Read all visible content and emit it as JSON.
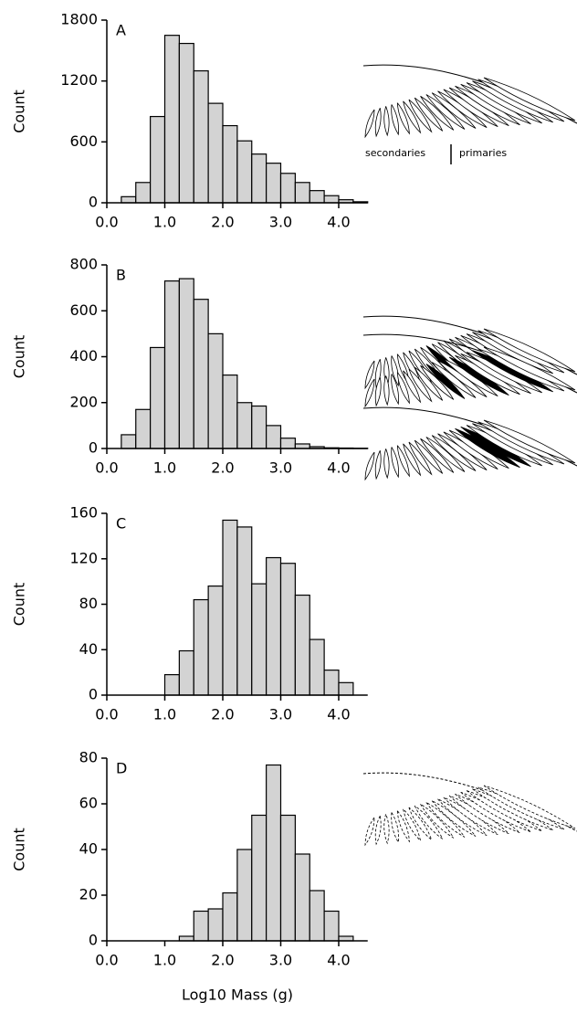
{
  "chart_data": [
    {
      "type": "histogram",
      "label": "A",
      "ylabel": "Count",
      "color": "#d3d3d3",
      "bins": [
        0,
        0.25,
        0.5,
        0.75,
        1.0,
        1.25,
        1.5,
        1.75,
        2.0,
        2.25,
        2.5,
        2.75,
        3.0,
        3.25,
        3.5,
        3.75,
        4.0,
        4.25,
        4.5
      ],
      "values": [
        0,
        60,
        200,
        850,
        1650,
        1570,
        1300,
        980,
        760,
        610,
        480,
        390,
        290,
        200,
        120,
        70,
        30,
        10
      ],
      "xlim": [
        0,
        4.5
      ],
      "ylim": [
        0,
        1800
      ],
      "yticks": [
        0,
        600,
        1200,
        1800
      ],
      "xticks": [
        {
          "value": 0,
          "label": "0.0"
        },
        {
          "value": 1,
          "label": "1.0"
        },
        {
          "value": 2,
          "label": "2.0"
        },
        {
          "value": 3,
          "label": "3.0"
        },
        {
          "value": 4,
          "label": "4.0"
        }
      ],
      "annotations": [
        "secondaries",
        "primaries"
      ]
    },
    {
      "type": "histogram",
      "label": "B",
      "ylabel": "Count",
      "color": "#d3d3d3",
      "bins": [
        0,
        0.25,
        0.5,
        0.75,
        1.0,
        1.25,
        1.5,
        1.75,
        2.0,
        2.25,
        2.5,
        2.75,
        3.0,
        3.25,
        3.5,
        3.75,
        4.0,
        4.25,
        4.5
      ],
      "values": [
        0,
        60,
        170,
        440,
        730,
        740,
        650,
        500,
        320,
        200,
        185,
        100,
        45,
        20,
        8,
        3,
        2,
        1
      ],
      "xlim": [
        0,
        4.5
      ],
      "ylim": [
        0,
        800
      ],
      "yticks": [
        0,
        200,
        400,
        600,
        800
      ],
      "xticks": [
        {
          "value": 0,
          "label": "0.0"
        },
        {
          "value": 1,
          "label": "1.0"
        },
        {
          "value": 2,
          "label": "2.0"
        },
        {
          "value": 3,
          "label": "3.0"
        },
        {
          "value": 4,
          "label": "4.0"
        }
      ]
    },
    {
      "type": "histogram",
      "label": "C",
      "ylabel": "Count",
      "color": "#d3d3d3",
      "bins": [
        0,
        0.25,
        0.5,
        0.75,
        1.0,
        1.25,
        1.5,
        1.75,
        2.0,
        2.25,
        2.5,
        2.75,
        3.0,
        3.25,
        3.5,
        3.75,
        4.0,
        4.25,
        4.5
      ],
      "values": [
        0,
        0,
        0,
        0,
        18,
        39,
        84,
        96,
        154,
        148,
        98,
        121,
        116,
        88,
        49,
        22,
        11,
        0
      ],
      "xlim": [
        0,
        4.5
      ],
      "ylim": [
        0,
        160
      ],
      "yticks": [
        0,
        40,
        80,
        120,
        160
      ],
      "xticks": [
        {
          "value": 0,
          "label": "0.0"
        },
        {
          "value": 1,
          "label": "1.0"
        },
        {
          "value": 2,
          "label": "2.0"
        },
        {
          "value": 3,
          "label": "3.0"
        },
        {
          "value": 4,
          "label": "4.0"
        }
      ]
    },
    {
      "type": "histogram",
      "label": "D",
      "ylabel": "Count",
      "xlabel": "Log10 Mass (g)",
      "color": "#d3d3d3",
      "bins": [
        0,
        0.25,
        0.5,
        0.75,
        1.0,
        1.25,
        1.5,
        1.75,
        2.0,
        2.25,
        2.5,
        2.75,
        3.0,
        3.25,
        3.5,
        3.75,
        4.0,
        4.25,
        4.5
      ],
      "values": [
        0,
        0,
        0,
        0,
        0,
        2,
        13,
        14,
        21,
        40,
        55,
        77,
        55,
        38,
        22,
        13,
        2,
        0
      ],
      "xlim": [
        0,
        4.5
      ],
      "ylim": [
        0,
        80
      ],
      "yticks": [
        0,
        20,
        40,
        60,
        80
      ],
      "xticks": [
        {
          "value": 0,
          "label": "0.0"
        },
        {
          "value": 1,
          "label": "1.0"
        },
        {
          "value": 2,
          "label": "2.0"
        },
        {
          "value": 3,
          "label": "3.0"
        },
        {
          "value": 4,
          "label": "4.0"
        }
      ]
    }
  ]
}
